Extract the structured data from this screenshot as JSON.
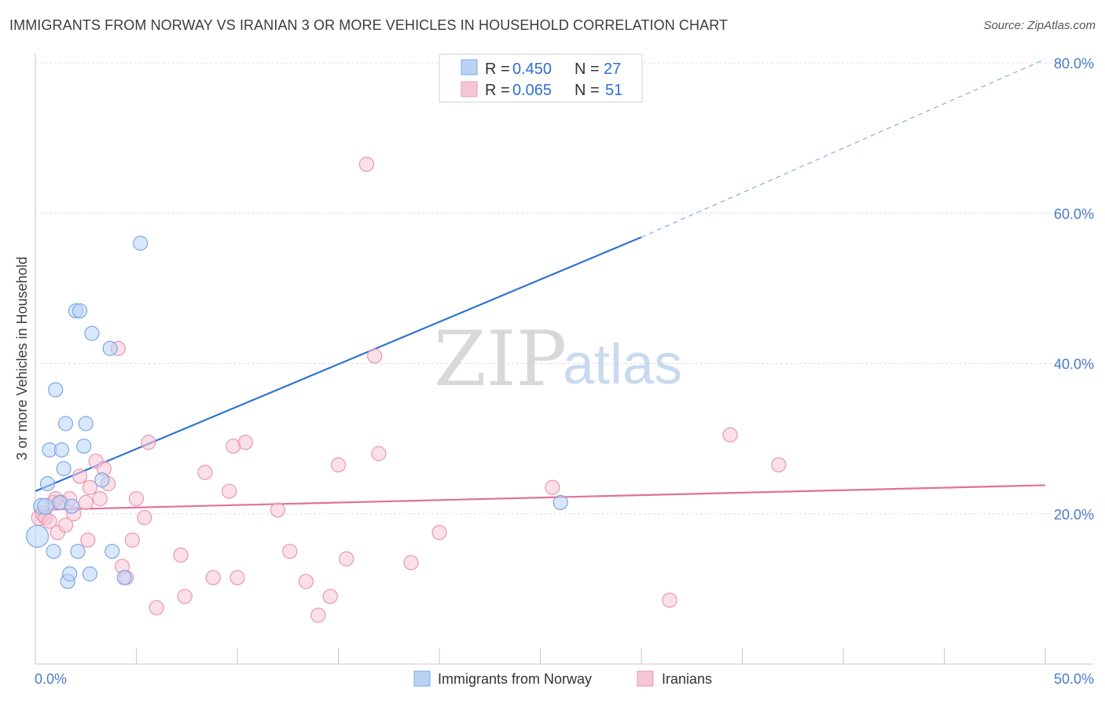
{
  "title": "IMMIGRANTS FROM NORWAY VS IRANIAN 3 OR MORE VEHICLES IN HOUSEHOLD CORRELATION CHART",
  "source": "Source: ZipAtlas.com",
  "watermark": {
    "zip": "ZIP",
    "atlas": "atlas"
  },
  "colors": {
    "blue_fill": "#b9d3f5",
    "blue_stroke": "#7aa8e6",
    "blue_line": "#2f74d0",
    "pink_fill": "#f7c6d6",
    "pink_stroke": "#e996b3",
    "pink_line": "#e0709a",
    "tick_text": "#4a7cc9",
    "grid": "#dddddd"
  },
  "legend": {
    "rows": [
      {
        "r_label": "R = ",
        "r_value": "0.450",
        "n_label": "N = ",
        "n_value": "27"
      },
      {
        "r_label": "R = ",
        "r_value": "0.065",
        "n_label": "N = ",
        "n_value": "51"
      }
    ]
  },
  "chart_data": {
    "type": "scatter",
    "title": "IMMIGRANTS FROM NORWAY VS IRANIAN 3 OR MORE VEHICLES IN HOUSEHOLD CORRELATION CHART",
    "xlabel": "",
    "ylabel": "3 or more Vehicles in Household",
    "xlim": [
      0,
      50
    ],
    "ylim": [
      0,
      80
    ],
    "x_tick_labels": [
      "0.0%",
      "50.0%"
    ],
    "y_ticks": [
      20,
      40,
      60,
      80
    ],
    "y_tick_labels": [
      "20.0%",
      "40.0%",
      "60.0%",
      "80.0%"
    ],
    "grid": true,
    "legend_position": "top-center",
    "series": [
      {
        "name": "Immigrants from Norway",
        "color": "#b9d3f5",
        "x": [
          0.1,
          0.3,
          0.5,
          0.6,
          0.7,
          0.9,
          1.0,
          1.2,
          1.3,
          1.4,
          1.5,
          1.6,
          1.7,
          1.8,
          2.0,
          2.1,
          2.2,
          2.4,
          2.5,
          2.7,
          2.8,
          3.3,
          3.7,
          3.8,
          4.4,
          5.2,
          26.0
        ],
        "y": [
          17.0,
          21.0,
          21.0,
          24.0,
          28.5,
          15.0,
          36.5,
          21.5,
          28.5,
          26.0,
          32.0,
          11.0,
          12.0,
          21.0,
          47.0,
          15.0,
          47.0,
          29.0,
          32.0,
          12.0,
          44.0,
          24.5,
          42.0,
          15.0,
          11.5,
          56.0,
          21.5
        ],
        "size": [
          14,
          10,
          10,
          9,
          9,
          9,
          9,
          9,
          9,
          9,
          9,
          9,
          9,
          9,
          9,
          9,
          9,
          9,
          9,
          9,
          9,
          9,
          9,
          9,
          9,
          9,
          9
        ]
      },
      {
        "name": "Iranians",
        "color": "#f7c6d6",
        "x": [
          0.2,
          0.4,
          0.5,
          0.7,
          0.9,
          1.0,
          1.1,
          1.3,
          1.5,
          1.7,
          1.9,
          2.2,
          2.5,
          2.6,
          2.7,
          3.0,
          3.2,
          3.4,
          3.6,
          4.1,
          4.3,
          4.5,
          4.8,
          5.0,
          5.4,
          5.6,
          6.0,
          7.2,
          7.4,
          8.4,
          8.8,
          9.6,
          9.8,
          10.0,
          10.4,
          12.0,
          12.6,
          13.4,
          14.0,
          14.6,
          15.0,
          15.4,
          16.4,
          16.8,
          17.0,
          18.6,
          20.0,
          25.6,
          31.4,
          34.4,
          36.8
        ],
        "y": [
          19.5,
          20.0,
          19.5,
          19.0,
          21.5,
          22.0,
          17.5,
          21.5,
          18.5,
          22.0,
          20.0,
          25.0,
          21.5,
          16.5,
          23.5,
          27.0,
          22.0,
          26.0,
          24.0,
          42.0,
          13.0,
          11.5,
          16.5,
          22.0,
          19.5,
          29.5,
          7.5,
          14.5,
          9.0,
          25.5,
          11.5,
          23.0,
          29.0,
          11.5,
          29.5,
          20.5,
          15.0,
          11.0,
          6.5,
          9.0,
          26.5,
          14.0,
          66.5,
          41.0,
          28.0,
          13.5,
          17.5,
          23.5,
          8.5,
          30.5,
          26.5
        ],
        "size": [
          10,
          10,
          9,
          9,
          9,
          9,
          9,
          9,
          9,
          9,
          9,
          9,
          9,
          9,
          9,
          9,
          9,
          9,
          9,
          9,
          9,
          9,
          9,
          9,
          9,
          9,
          9,
          9,
          9,
          9,
          9,
          9,
          9,
          9,
          9,
          9,
          9,
          9,
          9,
          9,
          9,
          9,
          9,
          9,
          9,
          9,
          9,
          9,
          9,
          9,
          9
        ]
      }
    ],
    "trend_lines": [
      {
        "series": "Immigrants from Norway",
        "x0": 0,
        "y0": 23.0,
        "x1": 30,
        "y1": 56.8,
        "dashed_to_x": 50,
        "dashed_to_y": 80.5
      },
      {
        "series": "Iranians",
        "x0": 0,
        "y0": 20.5,
        "x1": 50,
        "y1": 23.8
      }
    ]
  }
}
